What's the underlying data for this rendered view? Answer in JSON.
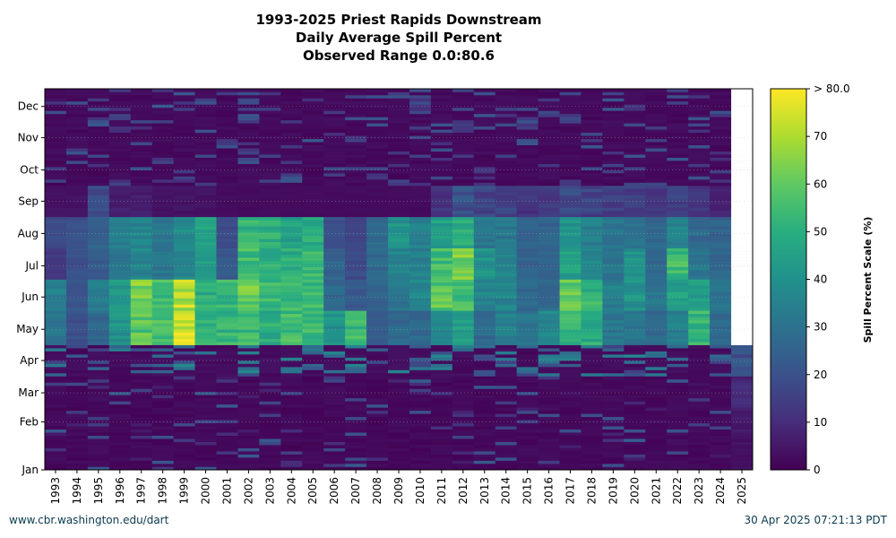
{
  "title": {
    "line1": "1993-2025 Priest Rapids Downstream",
    "line2": "Daily Average Spill Percent",
    "line3": "Observed Range 0.0:80.6"
  },
  "footer": {
    "source": "www.cbr.washington.edu/dart",
    "timestamp": "30 Apr 2025 07:21:13 PDT"
  },
  "chart_data": {
    "type": "heatmap",
    "title": "1993-2025 Priest Rapids Downstream Daily Average Spill Percent",
    "x": [
      1993,
      1994,
      1995,
      1996,
      1997,
      1998,
      1999,
      2000,
      2001,
      2002,
      2003,
      2004,
      2005,
      2006,
      2007,
      2008,
      2009,
      2010,
      2011,
      2012,
      2013,
      2014,
      2015,
      2016,
      2017,
      2018,
      2019,
      2020,
      2021,
      2022,
      2023,
      2024,
      2025
    ],
    "y_ticks": [
      "Jan",
      "Feb",
      "Mar",
      "Apr",
      "May",
      "Jun",
      "Jul",
      "Aug",
      "Sep",
      "Oct",
      "Nov",
      "Dec"
    ],
    "colorbar": {
      "label": "Spill Percent Scale (%)",
      "ticks": [
        "0",
        "10",
        "20",
        "30",
        "40",
        "50",
        "60",
        "70",
        "> 80.0"
      ],
      "range": [
        0,
        80
      ]
    },
    "observed_range": [
      0.0,
      80.6
    ],
    "colormap": [
      "#440154",
      "#472d7b",
      "#3b528b",
      "#2c728e",
      "#21918c",
      "#28ae80",
      "#5ec962",
      "#addc30",
      "#fde725"
    ],
    "missing_color": "#ffffff",
    "last_day_2025": 119,
    "grid": "dotted",
    "legend": "right",
    "approx_seasonal_spill_pct": [
      {
        "year": 1993,
        "may": 35,
        "jun": 38,
        "jul": 15,
        "aug": 20,
        "sep": 5
      },
      {
        "year": 1994,
        "may": 22,
        "jun": 24,
        "jul": 22,
        "aug": 22,
        "sep": 5
      },
      {
        "year": 1995,
        "may": 30,
        "jun": 38,
        "jul": 25,
        "aug": 28,
        "sep": 22
      },
      {
        "year": 1996,
        "may": 45,
        "jun": 48,
        "jul": 35,
        "aug": 38,
        "sep": 8
      },
      {
        "year": 1997,
        "may": 65,
        "jun": 72,
        "jul": 40,
        "aug": 40,
        "sep": 8
      },
      {
        "year": 1998,
        "may": 62,
        "jun": 60,
        "jul": 35,
        "aug": 35,
        "sep": 5
      },
      {
        "year": 1999,
        "may": 80,
        "jun": 78,
        "jul": 40,
        "aug": 42,
        "sep": 5
      },
      {
        "year": 2000,
        "may": 58,
        "jun": 55,
        "jul": 50,
        "aug": 50,
        "sep": 5
      },
      {
        "year": 2001,
        "may": 58,
        "jun": 58,
        "jul": 25,
        "aug": 20,
        "sep": 3
      },
      {
        "year": 2002,
        "may": 60,
        "jun": 68,
        "jul": 60,
        "aug": 58,
        "sep": 3
      },
      {
        "year": 2003,
        "may": 55,
        "jun": 60,
        "jul": 55,
        "aug": 55,
        "sep": 3
      },
      {
        "year": 2004,
        "may": 60,
        "jun": 60,
        "jul": 55,
        "aug": 50,
        "sep": 3
      },
      {
        "year": 2005,
        "may": 60,
        "jun": 60,
        "jul": 58,
        "aug": 55,
        "sep": 3
      },
      {
        "year": 2006,
        "may": 45,
        "jun": 30,
        "jul": 28,
        "aug": 22,
        "sep": 3
      },
      {
        "year": 2007,
        "may": 60,
        "jun": 25,
        "jul": 20,
        "aug": 18,
        "sep": 3
      },
      {
        "year": 2008,
        "may": 25,
        "jun": 28,
        "jul": 30,
        "aug": 30,
        "sep": 3
      },
      {
        "year": 2009,
        "may": 30,
        "jun": 35,
        "jul": 40,
        "aug": 45,
        "sep": 3
      },
      {
        "year": 2010,
        "may": 30,
        "jun": 40,
        "jul": 38,
        "aug": 38,
        "sep": 3
      },
      {
        "year": 2011,
        "may": 40,
        "jun": 65,
        "jul": 60,
        "aug": 50,
        "sep": 15
      },
      {
        "year": 2012,
        "may": 50,
        "jun": 62,
        "jul": 70,
        "aug": 55,
        "sep": 25
      },
      {
        "year": 2013,
        "may": 30,
        "jun": 40,
        "jul": 45,
        "aug": 35,
        "sep": 20
      },
      {
        "year": 2014,
        "may": 38,
        "jun": 40,
        "jul": 40,
        "aug": 35,
        "sep": 20
      },
      {
        "year": 2015,
        "may": 35,
        "jun": 30,
        "jul": 28,
        "aug": 28,
        "sep": 15
      },
      {
        "year": 2016,
        "may": 40,
        "jun": 30,
        "jul": 28,
        "aug": 28,
        "sep": 18
      },
      {
        "year": 2017,
        "may": 60,
        "jun": 68,
        "jul": 50,
        "aug": 45,
        "sep": 22
      },
      {
        "year": 2018,
        "may": 55,
        "jun": 58,
        "jul": 40,
        "aug": 38,
        "sep": 20
      },
      {
        "year": 2019,
        "may": 35,
        "jun": 38,
        "jul": 35,
        "aug": 35,
        "sep": 18
      },
      {
        "year": 2020,
        "may": 35,
        "jun": 45,
        "jul": 45,
        "aug": 35,
        "sep": 18
      },
      {
        "year": 2021,
        "may": 30,
        "jun": 35,
        "jul": 30,
        "aug": 30,
        "sep": 15
      },
      {
        "year": 2022,
        "may": 38,
        "jun": 50,
        "jul": 60,
        "aug": 40,
        "sep": 20
      },
      {
        "year": 2023,
        "may": 58,
        "jun": 48,
        "jul": 35,
        "aug": 30,
        "sep": 15
      },
      {
        "year": 2024,
        "may": 30,
        "jun": 35,
        "jul": 30,
        "aug": 28,
        "sep": 10
      },
      {
        "year": 2025,
        "jan": 5,
        "feb": 8,
        "mar": 12,
        "apr": 25
      }
    ]
  }
}
